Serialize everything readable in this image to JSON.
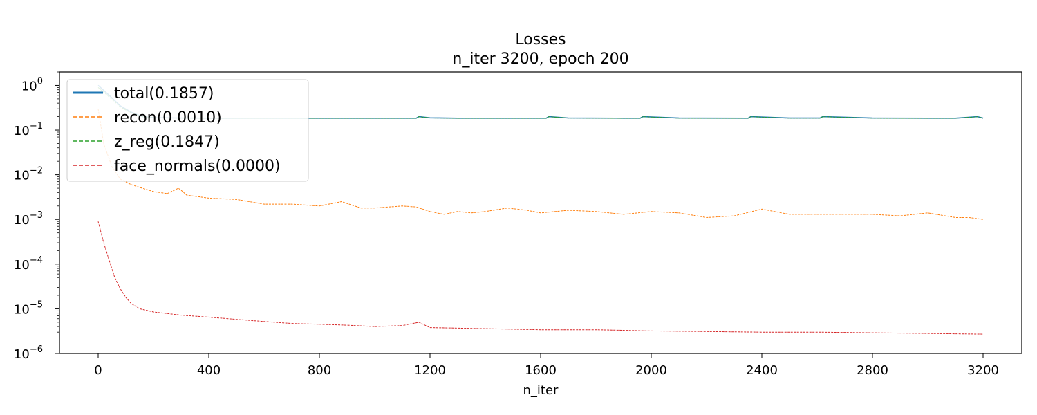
{
  "chart_data": {
    "type": "line",
    "title": "Losses",
    "subtitle": "n_iter 3200, epoch 200",
    "xlabel": "n_iter",
    "ylabel": "",
    "xlim": [
      -140,
      3340
    ],
    "ylim": [
      1e-06,
      2.0
    ],
    "yscale": "log",
    "xticks": [
      0,
      400,
      800,
      1200,
      1600,
      2000,
      2400,
      2800,
      3200
    ],
    "xtick_labels": [
      "0",
      "400",
      "800",
      "1200",
      "1600",
      "2000",
      "2400",
      "2800",
      "3200"
    ],
    "yticks": [
      1.0,
      0.1,
      0.01,
      0.001,
      0.0001,
      1e-05,
      1e-06
    ],
    "ytick_labels": [
      {
        "base": "10",
        "exp": "0"
      },
      {
        "base": "10",
        "exp": "−1"
      },
      {
        "base": "10",
        "exp": "−2"
      },
      {
        "base": "10",
        "exp": "−3"
      },
      {
        "base": "10",
        "exp": "−4"
      },
      {
        "base": "10",
        "exp": "−5"
      },
      {
        "base": "10",
        "exp": "−6"
      }
    ],
    "grid": false,
    "legend_position": "top-left",
    "series": [
      {
        "name": "total(0.1857)",
        "color": "#1f77b4",
        "style": "solid",
        "x": [
          0,
          40,
          80,
          120,
          160,
          200,
          300,
          400,
          600,
          800,
          1000,
          1150,
          1160,
          1200,
          1300,
          1500,
          1620,
          1630,
          1700,
          1900,
          1960,
          1970,
          2100,
          2350,
          2360,
          2500,
          2610,
          2620,
          2800,
          3000,
          3100,
          3180,
          3200
        ],
        "y": [
          1.0,
          0.6,
          0.35,
          0.25,
          0.2,
          0.19,
          0.186,
          0.185,
          0.185,
          0.185,
          0.185,
          0.185,
          0.2,
          0.188,
          0.185,
          0.185,
          0.185,
          0.2,
          0.187,
          0.185,
          0.185,
          0.2,
          0.186,
          0.185,
          0.2,
          0.186,
          0.186,
          0.2,
          0.186,
          0.185,
          0.185,
          0.2,
          0.1857
        ]
      },
      {
        "name": "recon(0.0010)",
        "color": "#ff7f0e",
        "style": "dashed",
        "x": [
          0,
          20,
          50,
          80,
          120,
          160,
          200,
          250,
          290,
          300,
          320,
          400,
          500,
          600,
          700,
          800,
          880,
          950,
          1000,
          1100,
          1150,
          1200,
          1250,
          1300,
          1350,
          1400,
          1480,
          1550,
          1600,
          1700,
          1800,
          1900,
          2000,
          2100,
          2200,
          2300,
          2400,
          2500,
          2600,
          2700,
          2800,
          2900,
          3000,
          3100,
          3150,
          3200
        ],
        "y": [
          0.3,
          0.05,
          0.015,
          0.008,
          0.006,
          0.005,
          0.0042,
          0.0038,
          0.005,
          0.0045,
          0.0035,
          0.003,
          0.0028,
          0.0022,
          0.0022,
          0.002,
          0.0025,
          0.0018,
          0.0018,
          0.002,
          0.0019,
          0.0015,
          0.0013,
          0.0015,
          0.0014,
          0.0015,
          0.0018,
          0.0016,
          0.0014,
          0.0016,
          0.0015,
          0.0013,
          0.0015,
          0.0014,
          0.0011,
          0.0012,
          0.0017,
          0.0013,
          0.0013,
          0.0013,
          0.0013,
          0.0012,
          0.0014,
          0.0011,
          0.0011,
          0.001
        ]
      },
      {
        "name": "z_reg(0.1847)",
        "color": "#2ca02c",
        "style": "dashed",
        "x": [
          0,
          40,
          80,
          120,
          160,
          200,
          300,
          400,
          600,
          800,
          1000,
          1150,
          1160,
          1200,
          1300,
          1500,
          1620,
          1630,
          1700,
          1900,
          1960,
          1970,
          2100,
          2350,
          2360,
          2500,
          2610,
          2620,
          2800,
          3000,
          3100,
          3180,
          3200
        ],
        "y": [
          0.9,
          0.55,
          0.33,
          0.24,
          0.2,
          0.188,
          0.185,
          0.184,
          0.184,
          0.184,
          0.184,
          0.184,
          0.199,
          0.187,
          0.184,
          0.184,
          0.184,
          0.199,
          0.186,
          0.184,
          0.184,
          0.199,
          0.185,
          0.184,
          0.199,
          0.185,
          0.185,
          0.199,
          0.185,
          0.184,
          0.184,
          0.199,
          0.1847
        ]
      },
      {
        "name": "face_normals(0.0000)",
        "color": "#d62728",
        "style": "dashed",
        "x": [
          0,
          20,
          40,
          60,
          80,
          100,
          120,
          150,
          200,
          300,
          400,
          500,
          600,
          700,
          800,
          900,
          1000,
          1100,
          1160,
          1200,
          1400,
          1600,
          1800,
          2000,
          2200,
          2400,
          2600,
          2800,
          3000,
          3200
        ],
        "y": [
          0.0009,
          0.0003,
          0.00012,
          5e-05,
          2.8e-05,
          1.8e-05,
          1.3e-05,
          1e-05,
          8.5e-06,
          7.2e-06,
          6.5e-06,
          5.8e-06,
          5.2e-06,
          4.7e-06,
          4.5e-06,
          4.3e-06,
          4e-06,
          4.2e-06,
          5e-06,
          3.8e-06,
          3.6e-06,
          3.4e-06,
          3.4e-06,
          3.2e-06,
          3.1e-06,
          3e-06,
          3e-06,
          2.9e-06,
          2.8e-06,
          2.7e-06
        ]
      }
    ]
  }
}
